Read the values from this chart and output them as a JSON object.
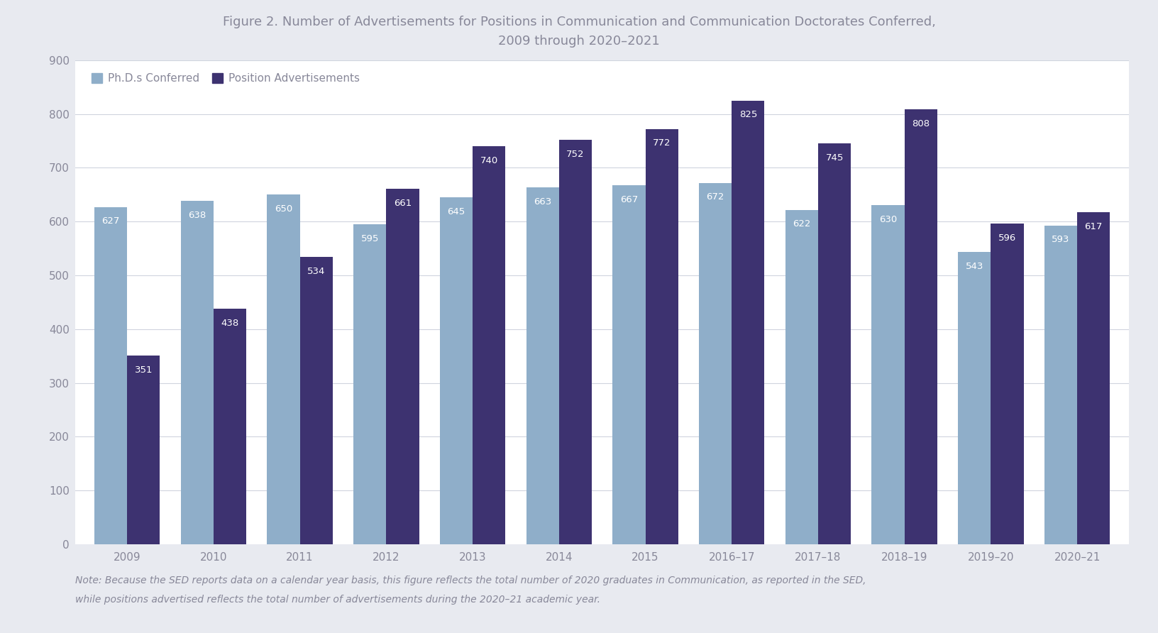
{
  "title_line1": "Figure 2. Number of Advertisements for Positions in Communication and Communication Doctorates Conferred,",
  "title_line2": "2009 through 2020–2021",
  "categories": [
    "2009",
    "2010",
    "2011",
    "2012",
    "2013",
    "2014",
    "2015",
    "2016–17",
    "2017–18",
    "2018–19",
    "2019–20",
    "2020–21"
  ],
  "phd_values": [
    627,
    638,
    650,
    595,
    645,
    663,
    667,
    672,
    622,
    630,
    543,
    593
  ],
  "ads_values": [
    351,
    438,
    534,
    661,
    740,
    752,
    772,
    825,
    745,
    808,
    596,
    617
  ],
  "phd_color": "#8faec9",
  "ads_color": "#3d3270",
  "figure_background": "#e8eaf0",
  "plot_background": "#ffffff",
  "ylim": [
    0,
    900
  ],
  "yticks": [
    0,
    100,
    200,
    300,
    400,
    500,
    600,
    700,
    800,
    900
  ],
  "legend_phd": "Ph.D.s Conferred",
  "legend_ads": "Position Advertisements",
  "note_part1": "Note: Because the ",
  "note_italic1": "SED",
  "note_part2": " reports data on a calendar year basis, this figure reflects the total number of 2020 graduates in Communication, as reported in the ",
  "note_italic2": "SED",
  "note_part3": ",",
  "note_line2": "while positions advertised reflects the total number of advertisements during the 2020–21 academic year.",
  "bar_width": 0.38,
  "title_fontsize": 13,
  "tick_fontsize": 11,
  "label_fontsize": 9.5,
  "legend_fontsize": 11,
  "note_fontsize": 10,
  "grid_color": "#d0d4de",
  "tick_color": "#888899",
  "title_color": "#888899",
  "label_color": "#ffffff"
}
